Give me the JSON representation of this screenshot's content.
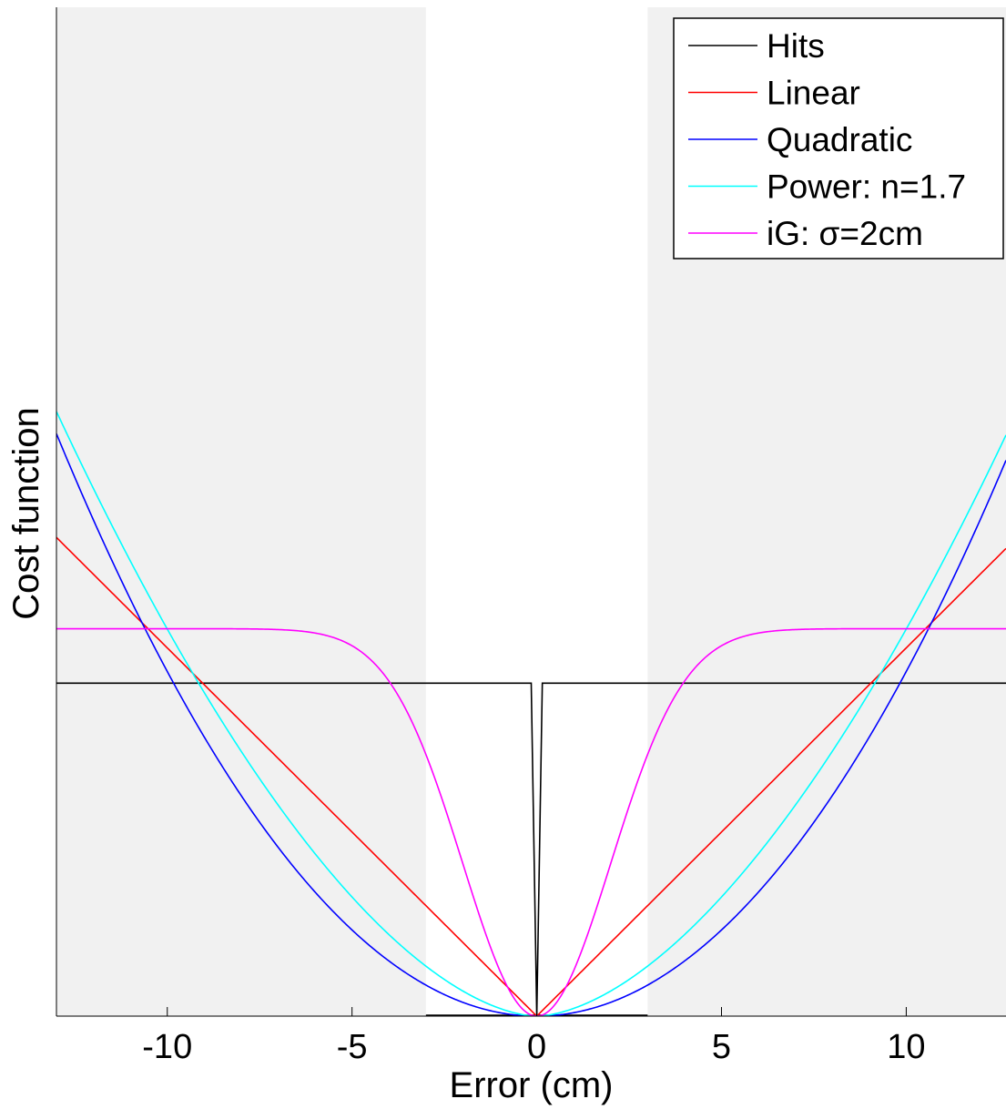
{
  "chart_data": {
    "type": "line",
    "xlabel": "Error (cm)",
    "ylabel": "Cost function",
    "xlim": [
      -13,
      12.7
    ],
    "ylim": [
      0,
      100
    ],
    "xticks": [
      -10,
      -5,
      0,
      5,
      10
    ],
    "xtick_labels": [
      "-10",
      "-5",
      "0",
      "5",
      "10"
    ],
    "grid": false,
    "legend_position": "top-right",
    "shaded_regions": [
      {
        "x": [
          -13,
          -3
        ],
        "color": "#f1f1f1"
      },
      {
        "x": [
          3,
          12.7
        ],
        "color": "#f1f1f1"
      }
    ],
    "series": [
      {
        "name": "Hits",
        "color": "#000000",
        "kind": "hits",
        "level": 33.0,
        "halfwidth": 0.15
      },
      {
        "name": "Linear",
        "color": "#ff0000",
        "kind": "linear",
        "slope": 3.65
      },
      {
        "name": "Quadratic",
        "color": "#0000ff",
        "kind": "quadratic",
        "coef": 0.3416
      },
      {
        "name": "Power: n=1.7",
        "color": "#00ffff",
        "kind": "power",
        "coef": 0.7655,
        "exponent": 1.7
      },
      {
        "name": "iG: σ=2cm",
        "color": "#ff00ff",
        "kind": "inverse-gaussian",
        "level": 38.4,
        "sigma": 2
      }
    ]
  }
}
